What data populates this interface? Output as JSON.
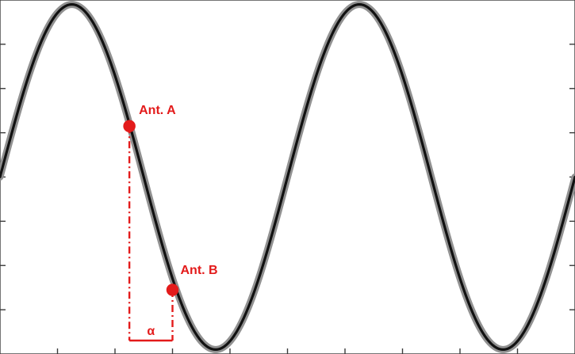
{
  "colors": {
    "accent": "#e31b1b",
    "wave": "#111111",
    "wave_shadow": "#8b8b8b",
    "axis": "#3a3a3a"
  },
  "chart_data": {
    "type": "line",
    "title": "",
    "xlabel": "",
    "ylabel": "",
    "xlim": [
      0,
      20
    ],
    "ylim": [
      -4,
      4
    ],
    "grid": false,
    "x_ticks": [
      2,
      4,
      6,
      8,
      10,
      12,
      14,
      16,
      18
    ],
    "y_ticks": [
      -3,
      -2,
      -1,
      0,
      1,
      2,
      3
    ],
    "series": [
      {
        "amplitude": 3.9,
        "period": 10,
        "phase": 0,
        "x_range": [
          0,
          20
        ]
      }
    ],
    "annotations": [
      {
        "label": "Ant. A",
        "x": 4.5,
        "y": 1.15
      },
      {
        "label": "Ant. B",
        "x": 6.0,
        "y": -2.55
      }
    ],
    "bracket": {
      "label": "α",
      "x_start": 4.5,
      "x_end": 6.0
    }
  }
}
